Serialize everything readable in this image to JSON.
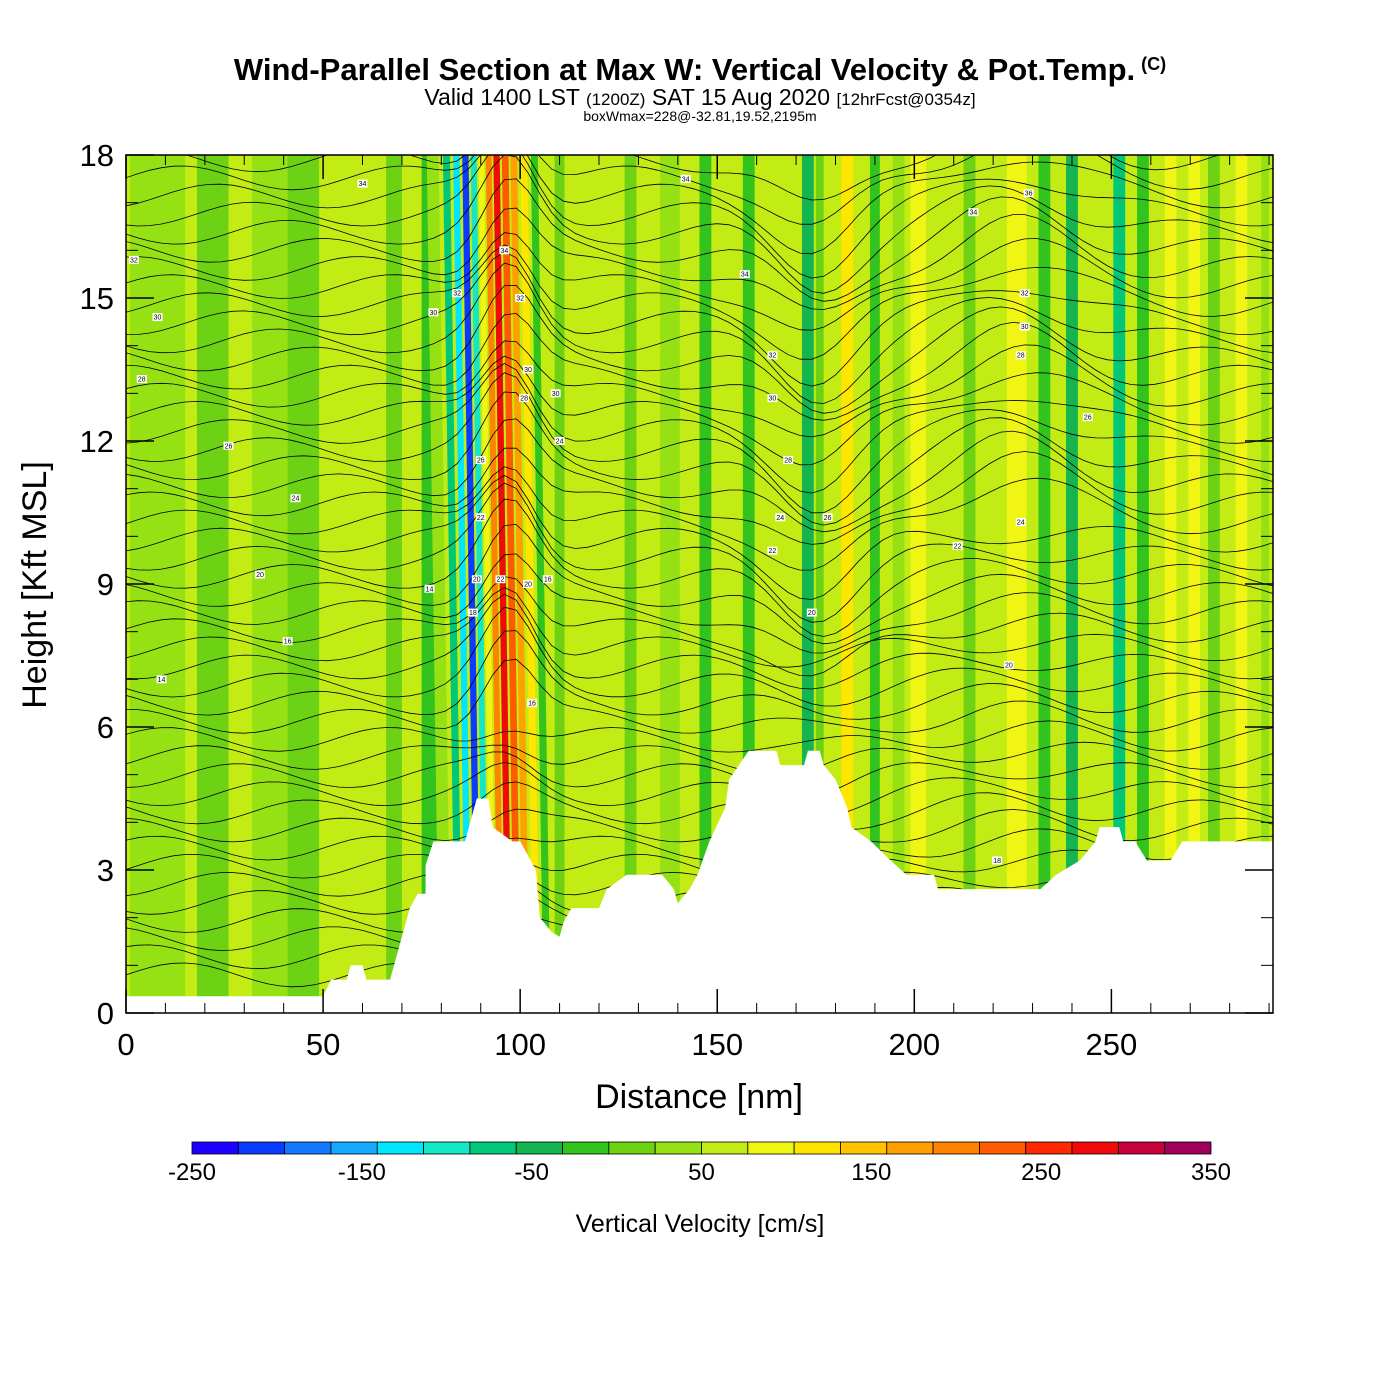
{
  "header": {
    "title": "Wind-Parallel Section at Max W: Vertical Velocity & Pot.Temp.",
    "title_mark": "(C)",
    "valid_prefix": "Valid 1400 LST",
    "valid_utc": "(1200Z)",
    "valid_date": "SAT 15 Aug 2020",
    "forecast": "[12hrFcst@0354z]",
    "box_info": "boxWmax=228@-32.81,19.52,2195m"
  },
  "chart_data": {
    "type": "heatmap",
    "xlabel": "Distance [nm]",
    "ylabel": "Height [Kft MSL]",
    "xlim": [
      0,
      291
    ],
    "ylim": [
      0,
      18
    ],
    "x_ticks": [
      0,
      50,
      100,
      150,
      200,
      250
    ],
    "y_ticks": [
      0,
      3,
      6,
      9,
      12,
      15,
      18
    ],
    "x_minor_step": 10,
    "y_minor_step": 1,
    "colorbar": {
      "label": "Vertical Velocity [cm/s]",
      "min": -250,
      "max": 350,
      "step": 25,
      "tick_labels": [
        "-250",
        "-150",
        "-50",
        "50",
        "150",
        "250",
        "350"
      ],
      "colors": [
        "#1e00ff",
        "#0a3cff",
        "#1478ff",
        "#14aaff",
        "#00e6ff",
        "#14e6c8",
        "#00c878",
        "#14b450",
        "#32c31e",
        "#6ed214",
        "#96e114",
        "#c3eb14",
        "#f0f514",
        "#ffe600",
        "#ffc300",
        "#ffa000",
        "#ff8200",
        "#ff5a00",
        "#ff2800",
        "#f00a0a",
        "#c8003c",
        "#a0005a"
      ]
    },
    "terrain_kft": [
      [
        0,
        0.35
      ],
      [
        50,
        0.35
      ],
      [
        52,
        0.7
      ],
      [
        56,
        0.7
      ],
      [
        57,
        1.0
      ],
      [
        60,
        1.0
      ],
      [
        61,
        0.7
      ],
      [
        67,
        0.7
      ],
      [
        68,
        1.0
      ],
      [
        69,
        1.3
      ],
      [
        70,
        1.6
      ],
      [
        71,
        1.9
      ],
      [
        72,
        2.2
      ],
      [
        74,
        2.5
      ],
      [
        76,
        2.5
      ],
      [
        76,
        3.1
      ],
      [
        78,
        3.6
      ],
      [
        86,
        3.6
      ],
      [
        89,
        4.5
      ],
      [
        92,
        4.5
      ],
      [
        93,
        3.9
      ],
      [
        98,
        3.6
      ],
      [
        100,
        3.6
      ],
      [
        104,
        3.0
      ],
      [
        105,
        2.0
      ],
      [
        108,
        1.7
      ],
      [
        110,
        1.6
      ],
      [
        111,
        1.9
      ],
      [
        113,
        2.2
      ],
      [
        120,
        2.2
      ],
      [
        122,
        2.6
      ],
      [
        127,
        2.9
      ],
      [
        136,
        2.9
      ],
      [
        139,
        2.6
      ],
      [
        140,
        2.3
      ],
      [
        143,
        2.6
      ],
      [
        145,
        2.9
      ],
      [
        148,
        3.6
      ],
      [
        152,
        4.3
      ],
      [
        153,
        4.9
      ],
      [
        158,
        5.5
      ],
      [
        165,
        5.5
      ],
      [
        166,
        5.2
      ],
      [
        172,
        5.2
      ],
      [
        173,
        5.5
      ],
      [
        176,
        5.5
      ],
      [
        177,
        5.2
      ],
      [
        180,
        4.9
      ],
      [
        183,
        4.3
      ],
      [
        184,
        3.9
      ],
      [
        189,
        3.6
      ],
      [
        194,
        3.2
      ],
      [
        198,
        2.9
      ],
      [
        205,
        2.9
      ],
      [
        206,
        2.6
      ],
      [
        232,
        2.6
      ],
      [
        236,
        2.9
      ],
      [
        242,
        3.2
      ],
      [
        246,
        3.6
      ],
      [
        247,
        3.9
      ],
      [
        252,
        3.9
      ],
      [
        253,
        3.6
      ],
      [
        256,
        3.6
      ],
      [
        259,
        3.2
      ],
      [
        265,
        3.2
      ],
      [
        268,
        3.6
      ],
      [
        291,
        3.6
      ]
    ],
    "w_bands": [
      {
        "x": 8,
        "w": 14,
        "v": 15
      },
      {
        "x": 22,
        "w": 8,
        "v": -10
      },
      {
        "x": 37,
        "w": 10,
        "v": 10
      },
      {
        "x": 45,
        "w": 8,
        "v": -20
      },
      {
        "x": 58,
        "w": 5,
        "v": 40
      },
      {
        "x": 68,
        "w": 4,
        "v": -15
      },
      {
        "x": 77,
        "w": 4,
        "v": -40
      },
      {
        "x": 81,
        "w": 3,
        "v": 20
      },
      {
        "x": 84.5,
        "w": 1.8,
        "v": -80
      },
      {
        "x": 87,
        "w": 1.6,
        "v": -150
      },
      {
        "x": 89.3,
        "w": 1.6,
        "v": -210
      },
      {
        "x": 91.4,
        "w": 1.5,
        "v": -120
      },
      {
        "x": 93.3,
        "w": 1.4,
        "v": 60
      },
      {
        "x": 95.2,
        "w": 1.5,
        "v": 160
      },
      {
        "x": 97.2,
        "w": 1.6,
        "v": 240
      },
      {
        "x": 99.4,
        "w": 1.7,
        "v": 190
      },
      {
        "x": 101.6,
        "w": 1.7,
        "v": 130
      },
      {
        "x": 104.1,
        "w": 1.8,
        "v": 85
      },
      {
        "x": 106.8,
        "w": 1.8,
        "v": -40
      },
      {
        "x": 110,
        "w": 2.5,
        "v": -10
      },
      {
        "x": 120,
        "w": 4,
        "v": 35
      },
      {
        "x": 128,
        "w": 3,
        "v": -20
      },
      {
        "x": 138,
        "w": 5,
        "v": 20
      },
      {
        "x": 147,
        "w": 3,
        "v": -30
      },
      {
        "x": 152,
        "w": 4,
        "v": 30
      },
      {
        "x": 158,
        "w": 3,
        "v": -45
      },
      {
        "x": 165,
        "w": 3,
        "v": 35
      },
      {
        "x": 173,
        "w": 3,
        "v": -60
      },
      {
        "x": 176,
        "w": 2,
        "v": -10
      },
      {
        "x": 183,
        "w": 3,
        "v": 80
      },
      {
        "x": 190,
        "w": 2.5,
        "v": -30
      },
      {
        "x": 196,
        "w": 3,
        "v": 20
      },
      {
        "x": 201,
        "w": 4,
        "v": 65
      },
      {
        "x": 208,
        "w": 4,
        "v": 45
      },
      {
        "x": 214,
        "w": 3,
        "v": -20
      },
      {
        "x": 219,
        "w": 4,
        "v": 40
      },
      {
        "x": 226,
        "w": 5,
        "v": 55
      },
      {
        "x": 233,
        "w": 3,
        "v": -40
      },
      {
        "x": 240,
        "w": 3,
        "v": -60
      },
      {
        "x": 246,
        "w": 3,
        "v": 30
      },
      {
        "x": 252,
        "w": 3,
        "v": -80
      },
      {
        "x": 258,
        "w": 3,
        "v": -40
      },
      {
        "x": 265,
        "w": 3,
        "v": 50
      },
      {
        "x": 271,
        "w": 3,
        "v": 70
      },
      {
        "x": 276,
        "w": 3,
        "v": -20
      },
      {
        "x": 283,
        "w": 3,
        "v": 55
      },
      {
        "x": 289,
        "w": 2,
        "v": 20
      }
    ],
    "contour_labels": [
      {
        "x": 60,
        "y": 17.4,
        "t": "34"
      },
      {
        "x": 2,
        "y": 15.8,
        "t": "32"
      },
      {
        "x": 8,
        "y": 14.6,
        "t": "30"
      },
      {
        "x": 4,
        "y": 13.3,
        "t": "28"
      },
      {
        "x": 26,
        "y": 11.9,
        "t": "26"
      },
      {
        "x": 43,
        "y": 10.8,
        "t": "24"
      },
      {
        "x": 34,
        "y": 9.2,
        "t": "20"
      },
      {
        "x": 41,
        "y": 7.8,
        "t": "16"
      },
      {
        "x": 9,
        "y": 7.0,
        "t": "14"
      },
      {
        "x": 78,
        "y": 14.7,
        "t": "30"
      },
      {
        "x": 84,
        "y": 15.1,
        "t": "32"
      },
      {
        "x": 96,
        "y": 16.0,
        "t": "34"
      },
      {
        "x": 90,
        "y": 11.6,
        "t": "26"
      },
      {
        "x": 90,
        "y": 10.4,
        "t": "22"
      },
      {
        "x": 89,
        "y": 9.1,
        "t": "20"
      },
      {
        "x": 88,
        "y": 8.4,
        "t": "18"
      },
      {
        "x": 95,
        "y": 9.1,
        "t": "22"
      },
      {
        "x": 100,
        "y": 15.0,
        "t": "32"
      },
      {
        "x": 102,
        "y": 13.5,
        "t": "30"
      },
      {
        "x": 101,
        "y": 12.9,
        "t": "28"
      },
      {
        "x": 109,
        "y": 13.0,
        "t": "30"
      },
      {
        "x": 110,
        "y": 12.0,
        "t": "24"
      },
      {
        "x": 102,
        "y": 9.0,
        "t": "20"
      },
      {
        "x": 107,
        "y": 9.1,
        "t": "16"
      },
      {
        "x": 103,
        "y": 6.5,
        "t": "16"
      },
      {
        "x": 77,
        "y": 8.9,
        "t": "14"
      },
      {
        "x": 142,
        "y": 17.5,
        "t": "34"
      },
      {
        "x": 157,
        "y": 15.5,
        "t": "34"
      },
      {
        "x": 164,
        "y": 13.8,
        "t": "32"
      },
      {
        "x": 164,
        "y": 12.9,
        "t": "30"
      },
      {
        "x": 168,
        "y": 11.6,
        "t": "28"
      },
      {
        "x": 166,
        "y": 10.4,
        "t": "24"
      },
      {
        "x": 164,
        "y": 9.7,
        "t": "22"
      },
      {
        "x": 178,
        "y": 10.4,
        "t": "26"
      },
      {
        "x": 174,
        "y": 8.4,
        "t": "20"
      },
      {
        "x": 215,
        "y": 16.8,
        "t": "34"
      },
      {
        "x": 229,
        "y": 17.2,
        "t": "36"
      },
      {
        "x": 228,
        "y": 15.1,
        "t": "32"
      },
      {
        "x": 228,
        "y": 14.4,
        "t": "30"
      },
      {
        "x": 227,
        "y": 13.8,
        "t": "28"
      },
      {
        "x": 244,
        "y": 12.5,
        "t": "26"
      },
      {
        "x": 227,
        "y": 10.3,
        "t": "24"
      },
      {
        "x": 211,
        "y": 9.8,
        "t": "22"
      },
      {
        "x": 224,
        "y": 7.3,
        "t": "20"
      },
      {
        "x": 221,
        "y": 3.2,
        "t": "18"
      }
    ]
  }
}
